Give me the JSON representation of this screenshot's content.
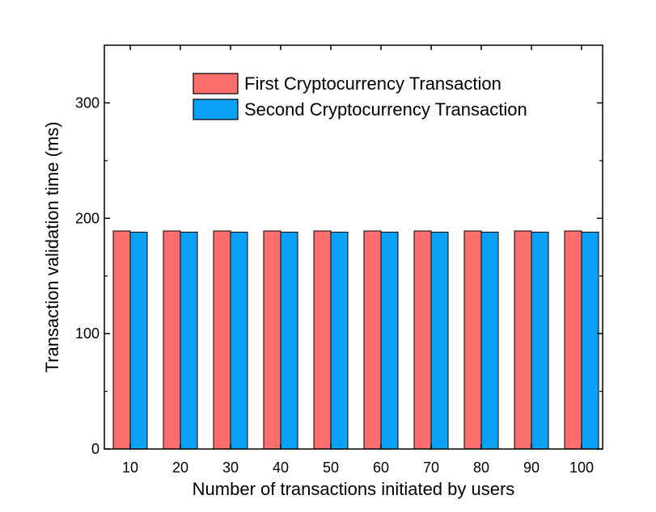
{
  "chart_data": {
    "type": "bar",
    "title": "",
    "xlabel": "Number of transactions initiated by users",
    "ylabel": "Transaction validation time (ms)",
    "categories": [
      "10",
      "20",
      "30",
      "40",
      "50",
      "60",
      "70",
      "80",
      "90",
      "100"
    ],
    "series": [
      {
        "name": "First Cryptocurrency Transaction",
        "color": "#fc6e6e",
        "values": [
          189,
          189,
          189,
          189,
          189,
          189,
          189,
          189,
          189,
          189
        ]
      },
      {
        "name": "Second Cryptocurrency Transaction",
        "color": "#0aa2f7",
        "values": [
          188,
          188,
          188,
          188,
          188,
          188,
          188,
          188,
          188,
          188
        ]
      }
    ],
    "ylim": [
      0,
      350
    ],
    "yticks": [
      "0",
      "100",
      "200",
      "300"
    ],
    "grid": false,
    "legend_position": "top-right"
  }
}
